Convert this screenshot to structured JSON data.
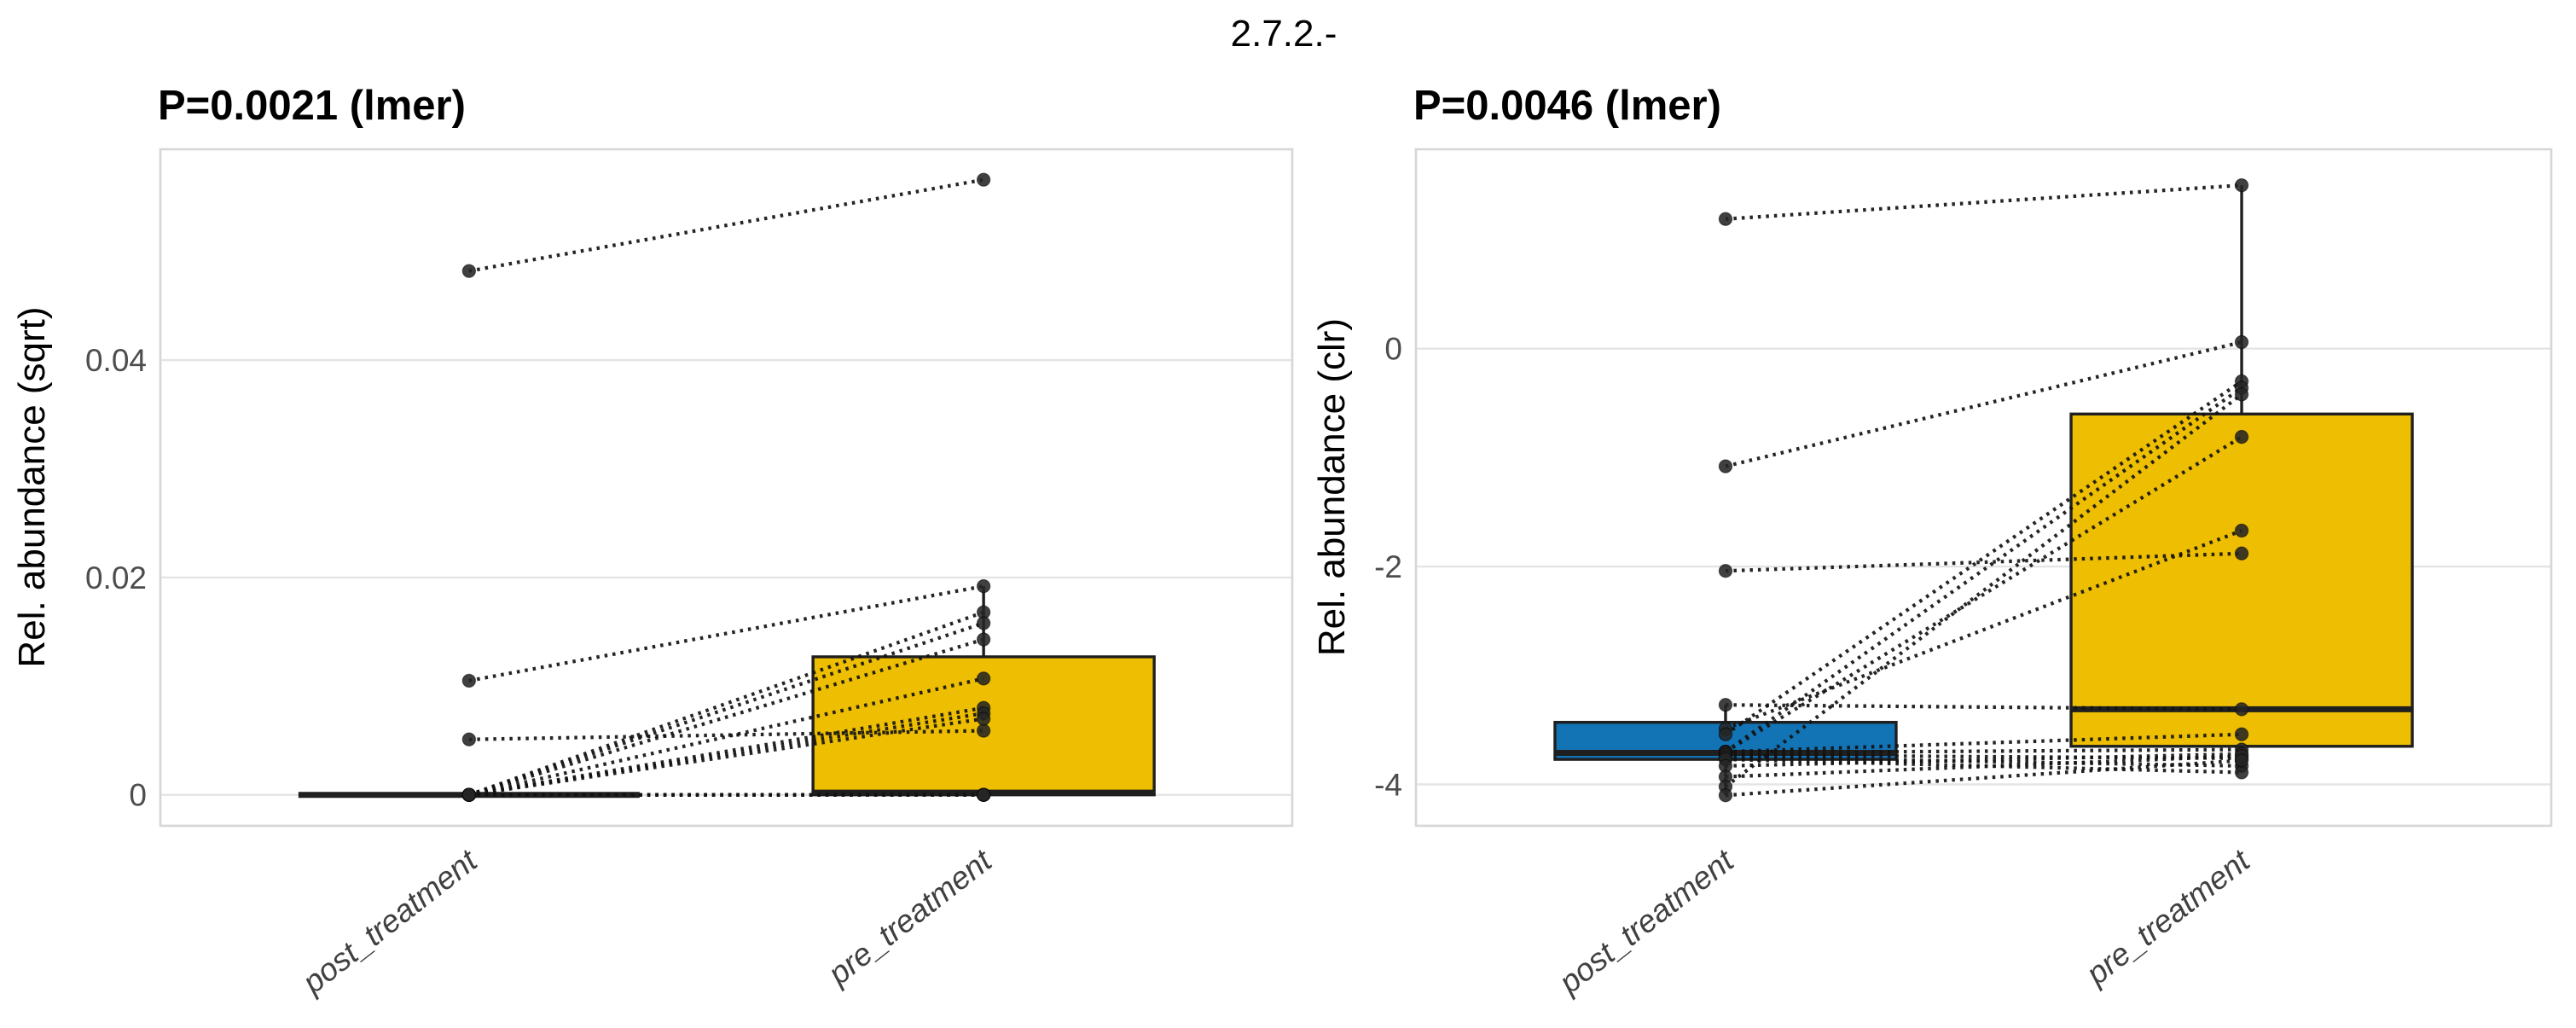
{
  "title": "2.7.2.-",
  "colors": {
    "post_box": "#1273B5",
    "pre_box": "#EDBE02",
    "point": "#262626",
    "line": "#121212",
    "grid": "#E4E4E4",
    "panel_border": "#D6D6D6",
    "box_stroke": "#1F1F1F",
    "axis_text": "#4D4D4D",
    "title_text": "#000000"
  },
  "chart_data": [
    {
      "type": "box",
      "subtitle": "P=0.0021 (lmer)",
      "ylabel": "Rel. abundance (sqrt)",
      "categories": [
        "post_treatment",
        "pre_treatment"
      ],
      "yticks": [
        0,
        0.02,
        0.04
      ],
      "ytick_labels": [
        "0",
        "0.02",
        "0.04"
      ],
      "ylim": [
        -0.00285,
        0.0594
      ],
      "grid": true,
      "legend": "none",
      "x_label_angle": -38,
      "boxes": [
        {
          "group": "post_treatment",
          "color": "#1273B5",
          "q1": 0,
          "median": 0,
          "q3": 0,
          "whisker_low": 0,
          "whisker_high": 0
        },
        {
          "group": "pre_treatment",
          "color": "#EDBE02",
          "q1": 0,
          "median": 0.0002,
          "q3": 0.0127,
          "whisker_low": 0,
          "whisker_high": 0.0192
        }
      ],
      "pairs": [
        [
          0.0482,
          0.0566
        ],
        [
          0.0105,
          0.0192
        ],
        [
          0.0051,
          0.0059
        ],
        [
          0,
          0.0168
        ],
        [
          0,
          0.0158
        ],
        [
          0,
          0.0143
        ],
        [
          0,
          0.0107
        ],
        [
          0,
          0.008
        ],
        [
          0,
          0.0075
        ],
        [
          0,
          0.007
        ],
        [
          0,
          0
        ],
        [
          0,
          0
        ],
        [
          0,
          0
        ],
        [
          0,
          0
        ],
        [
          0,
          0
        ]
      ]
    },
    {
      "type": "box",
      "subtitle": "P=0.0046 (lmer)",
      "ylabel": "Rel. abundance (clr)",
      "categories": [
        "post_treatment",
        "pre_treatment"
      ],
      "yticks": [
        0,
        -2,
        -4
      ],
      "ytick_labels": [
        "0",
        "-2",
        "-4"
      ],
      "ylim": [
        -4.38,
        1.83
      ],
      "grid": true,
      "legend": "none",
      "x_label_angle": -38,
      "boxes": [
        {
          "group": "post_treatment",
          "color": "#1273B5",
          "q1": -3.77,
          "median": -3.71,
          "q3": -3.43,
          "whisker_low": -4.1,
          "whisker_high": -3.27
        },
        {
          "group": "pre_treatment",
          "color": "#EDBE02",
          "q1": -3.65,
          "median": -3.31,
          "q3": -0.6,
          "whisker_low": -3.89,
          "whisker_high": 1.5
        }
      ],
      "pairs": [
        [
          1.19,
          1.5
        ],
        [
          -1.08,
          0.06
        ],
        [
          -2.04,
          -1.88
        ],
        [
          -3.27,
          -3.31
        ],
        [
          -3.49,
          -1.67
        ],
        [
          -3.54,
          -0.3
        ],
        [
          -3.7,
          -0.36
        ],
        [
          -3.7,
          -0.81
        ],
        [
          -3.7,
          -3.54
        ],
        [
          -3.71,
          -3.68
        ],
        [
          -3.73,
          -3.76
        ],
        [
          -3.75,
          -3.83
        ],
        [
          -3.77,
          -3.89
        ],
        [
          -3.83,
          -3.72
        ],
        [
          -3.93,
          -3.74
        ],
        [
          -4.02,
          -0.42
        ],
        [
          -4.1,
          -3.78
        ]
      ]
    }
  ]
}
